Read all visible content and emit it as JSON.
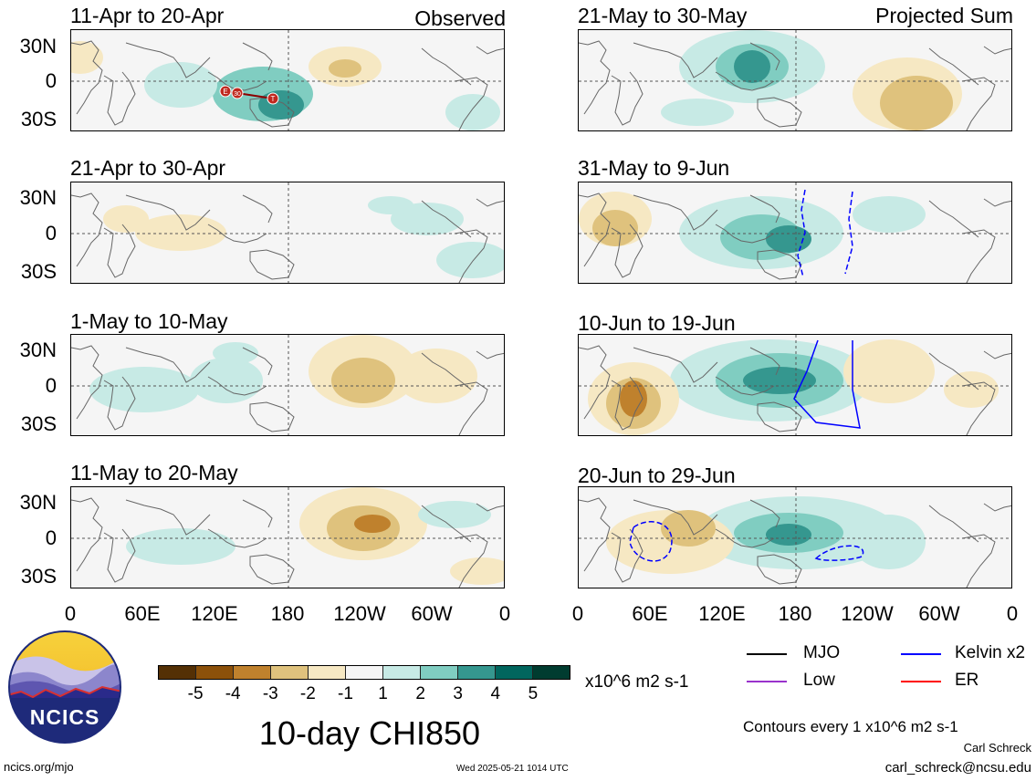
{
  "headers": {
    "observed": "Observed",
    "projected": "Projected Sum"
  },
  "panels": [
    {
      "id": "obs1",
      "title": "11-Apr to 20-Apr",
      "show_lon": false
    },
    {
      "id": "obs2",
      "title": "21-Apr to 30-Apr",
      "show_lon": false
    },
    {
      "id": "obs3",
      "title": "1-May to 10-May",
      "show_lon": false
    },
    {
      "id": "obs4",
      "title": "11-May to 20-May",
      "show_lon": true
    },
    {
      "id": "proj1",
      "title": "21-May to 30-May",
      "show_lon": false
    },
    {
      "id": "proj2",
      "title": "31-May to 9-Jun",
      "show_lon": false
    },
    {
      "id": "proj3",
      "title": "10-Jun to 19-Jun",
      "show_lon": false
    },
    {
      "id": "proj4",
      "title": "20-Jun to 29-Jun",
      "show_lon": true
    }
  ],
  "lat_labels": [
    "30N",
    "0",
    "30S"
  ],
  "lon_labels": [
    "0",
    "60E",
    "120E",
    "180",
    "120W",
    "60W",
    "0"
  ],
  "mjo_track_labels": [
    "E",
    "30",
    "T"
  ],
  "colorbar": {
    "labels": [
      "-5",
      "-4",
      "-3",
      "-2",
      "-1",
      "1",
      "2",
      "3",
      "4",
      "5"
    ],
    "colors": [
      "#543005",
      "#8c510a",
      "#bf812d",
      "#dfc27d",
      "#f6e8c3",
      "#f5f5f5",
      "#c7eae5",
      "#80cdc1",
      "#35978f",
      "#01665e",
      "#003c30"
    ],
    "units": "x10^6 m2 s-1"
  },
  "legend": [
    {
      "label": "MJO",
      "color": "#000000"
    },
    {
      "label": "Kelvin x2",
      "color": "#0000ff"
    },
    {
      "label": "Low",
      "color": "#9932cc"
    },
    {
      "label": "ER",
      "color": "#ff0000"
    }
  ],
  "main_title": "10-day CHI850",
  "contours_note": "Contours every 1 x10^6 m2 s-1",
  "logo_text": "NCICS",
  "footer": {
    "left": "ncics.org/mjo",
    "center": "Wed 2025-05-21 1014 UTC",
    "author": "Carl Schreck",
    "email": "carl_schreck@ncsu.edu"
  }
}
